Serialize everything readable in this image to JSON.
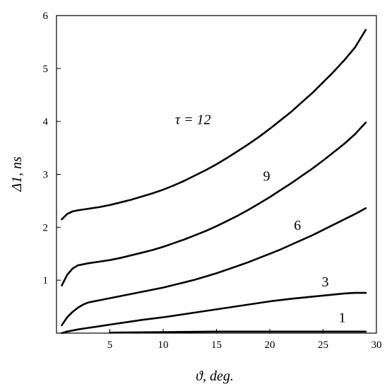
{
  "chart_data": {
    "type": "line",
    "title": "",
    "xlabel": "ϑ, deg.",
    "ylabel": "Δ1, ns",
    "xlim": [
      0,
      30
    ],
    "ylim": [
      0,
      6
    ],
    "x_ticks": [
      5,
      10,
      15,
      20,
      25,
      30
    ],
    "y_ticks": [
      1,
      2,
      3,
      4,
      5,
      6
    ],
    "grid": false,
    "legend": "none",
    "line_color": "#000000",
    "series": [
      {
        "label": "τ = 12",
        "x": [
          0.5,
          1,
          1.5,
          2,
          3,
          4,
          5,
          6,
          7,
          8,
          9,
          10,
          11,
          12,
          13,
          14,
          15,
          16,
          17,
          18,
          19,
          20,
          21,
          22,
          23,
          24,
          25,
          26,
          27,
          28,
          29
        ],
        "y": [
          2.15,
          2.25,
          2.3,
          2.32,
          2.35,
          2.38,
          2.42,
          2.47,
          2.52,
          2.58,
          2.64,
          2.71,
          2.79,
          2.88,
          2.98,
          3.08,
          3.19,
          3.31,
          3.44,
          3.57,
          3.71,
          3.86,
          4.02,
          4.18,
          4.36,
          4.54,
          4.74,
          4.94,
          5.16,
          5.4,
          5.73
        ]
      },
      {
        "label": "9",
        "x": [
          0.5,
          1,
          1.5,
          2,
          3,
          4,
          5,
          6,
          7,
          8,
          9,
          10,
          11,
          12,
          13,
          14,
          15,
          16,
          17,
          18,
          19,
          20,
          21,
          22,
          23,
          24,
          25,
          26,
          27,
          28,
          29
        ],
        "y": [
          0.9,
          1.1,
          1.22,
          1.28,
          1.32,
          1.35,
          1.38,
          1.42,
          1.47,
          1.52,
          1.57,
          1.63,
          1.7,
          1.77,
          1.85,
          1.93,
          2.02,
          2.12,
          2.22,
          2.33,
          2.45,
          2.57,
          2.7,
          2.83,
          2.97,
          3.11,
          3.26,
          3.42,
          3.58,
          3.76,
          3.98
        ]
      },
      {
        "label": "6",
        "x": [
          0.5,
          1,
          1.5,
          2,
          2.5,
          3,
          4,
          5,
          6,
          7,
          8,
          9,
          10,
          11,
          12,
          13,
          14,
          15,
          16,
          17,
          18,
          19,
          20,
          21,
          22,
          23,
          24,
          25,
          26,
          27,
          28,
          29
        ],
        "y": [
          0.15,
          0.3,
          0.4,
          0.48,
          0.54,
          0.58,
          0.62,
          0.66,
          0.7,
          0.74,
          0.78,
          0.82,
          0.86,
          0.91,
          0.96,
          1.01,
          1.07,
          1.13,
          1.2,
          1.27,
          1.34,
          1.42,
          1.5,
          1.58,
          1.67,
          1.76,
          1.85,
          1.95,
          2.05,
          2.15,
          2.25,
          2.36
        ]
      },
      {
        "label": "3",
        "x": [
          0.5,
          1,
          2,
          3,
          4,
          5,
          6,
          8,
          10,
          12,
          14,
          16,
          18,
          20,
          22,
          24,
          26,
          27,
          28,
          29
        ],
        "y": [
          0.0,
          0.03,
          0.07,
          0.1,
          0.13,
          0.16,
          0.19,
          0.25,
          0.3,
          0.36,
          0.42,
          0.48,
          0.54,
          0.6,
          0.65,
          0.69,
          0.73,
          0.75,
          0.76,
          0.76
        ]
      },
      {
        "label": "1",
        "x": [
          5,
          10,
          15,
          20,
          25,
          29
        ],
        "y": [
          0.01,
          0.02,
          0.03,
          0.03,
          0.03,
          0.03
        ]
      }
    ]
  }
}
